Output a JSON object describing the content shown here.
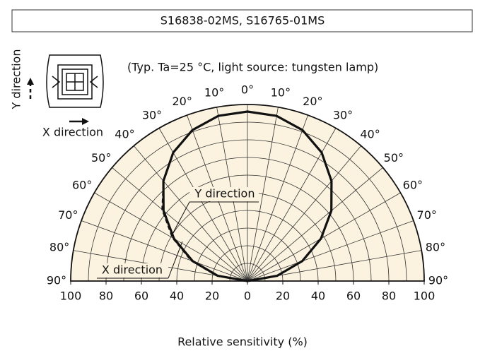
{
  "chart_data": {
    "type": "polar",
    "title": "S16838-02MS, S16765-01MS",
    "subtitle": "(Typ. Ta=25 °C, light source: tungsten lamp)",
    "x_label": "Relative sensitivity (%)",
    "inset": {
      "x_label": "X direction",
      "y_label": "Y direction"
    },
    "theta": [
      -90,
      -80,
      -70,
      -60,
      -50,
      -40,
      -30,
      -20,
      -10,
      0,
      10,
      20,
      30,
      40,
      50,
      60,
      70,
      80,
      90
    ],
    "series": [
      {
        "name": "Y direction",
        "color": "#111111",
        "line_style": "solid",
        "values": [
          0,
          17,
          33,
          48,
          62,
          74,
          84,
          91,
          95,
          96,
          95,
          91,
          84,
          74,
          62,
          48,
          33,
          17,
          0
        ]
      },
      {
        "name": "X direction",
        "color": "#111111",
        "line_style": "dashed",
        "values": [
          0,
          18,
          34,
          49,
          63,
          74,
          84,
          91,
          95,
          96,
          95,
          91,
          84,
          74,
          62,
          48,
          33,
          17,
          0
        ]
      }
    ],
    "xlim": [
      -100,
      100
    ],
    "xticks": [
      {
        "value": -100,
        "label": "100"
      },
      {
        "value": -80,
        "label": "80"
      },
      {
        "value": -60,
        "label": "60"
      },
      {
        "value": -40,
        "label": "40"
      },
      {
        "value": -20,
        "label": "20"
      },
      0,
      20,
      40,
      60,
      80,
      100
    ],
    "thetaticks": [
      {
        "value": -90,
        "label": "90°"
      },
      {
        "value": -80,
        "label": "80°"
      },
      {
        "value": -70,
        "label": "70°"
      },
      {
        "value": -60,
        "label": "60°"
      },
      {
        "value": -50,
        "label": "50°"
      },
      {
        "value": -40,
        "label": "40°"
      },
      {
        "value": -30,
        "label": "30°"
      },
      {
        "value": -20,
        "label": "20°"
      },
      {
        "value": -10,
        "label": "10°"
      },
      {
        "value": 0,
        "label": "0°"
      },
      {
        "value": 10,
        "label": "10°"
      },
      {
        "value": 20,
        "label": "20°"
      },
      {
        "value": 30,
        "label": "30°"
      },
      {
        "value": 40,
        "label": "40°"
      },
      {
        "value": 50,
        "label": "50°"
      },
      {
        "value": 60,
        "label": "60°"
      },
      {
        "value": 70,
        "label": "70°"
      },
      {
        "value": 80,
        "label": "80°"
      },
      {
        "value": 90,
        "label": "90°"
      }
    ],
    "grid": true
  }
}
